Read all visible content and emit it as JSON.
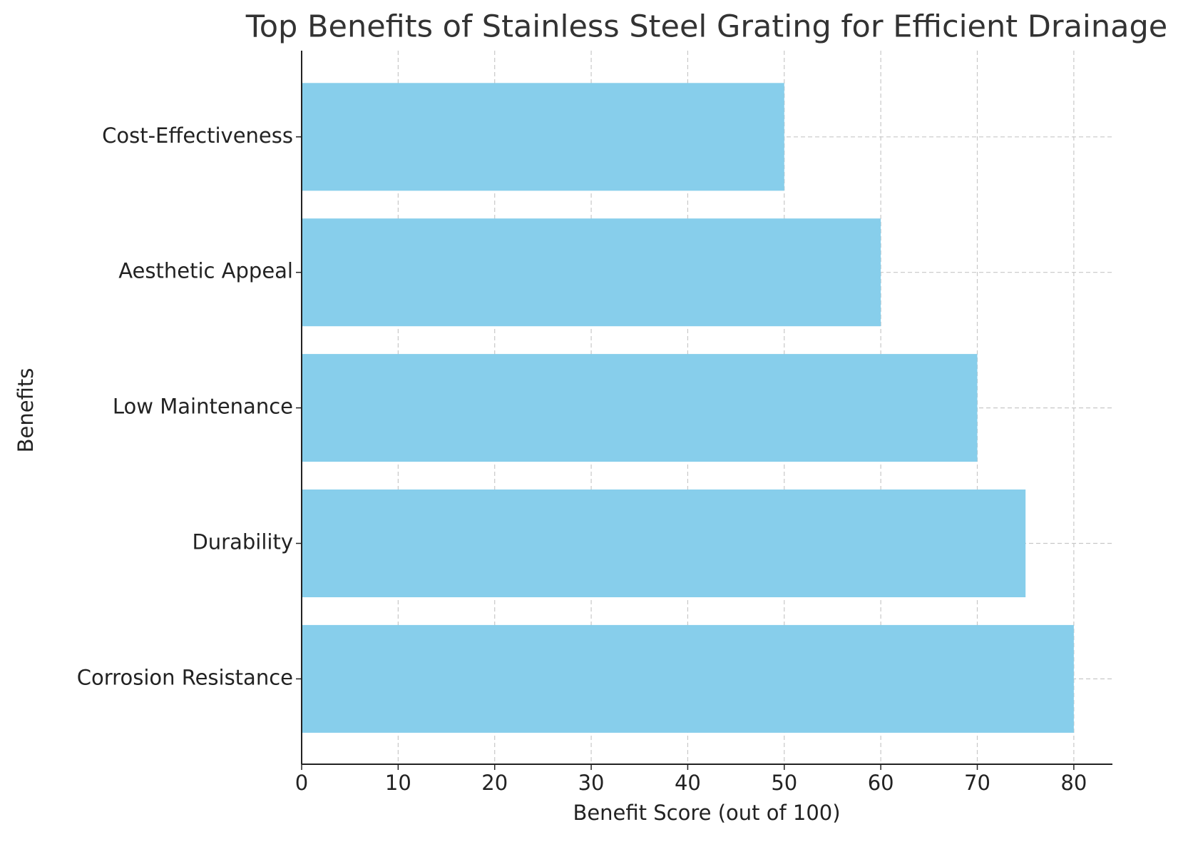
{
  "chart_data": {
    "type": "barh",
    "title": "Top Benefits of Stainless Steel Grating for Efficient Drainage",
    "x_label": "Benefit Score (out of 100)",
    "y_label": "Benefits",
    "categories": [
      "Corrosion Resistance",
      "Durability",
      "Low Maintenance",
      "Aesthetic Appeal",
      "Cost-Effectiveness"
    ],
    "values": [
      80,
      75,
      70,
      60,
      50
    ],
    "color": "#87ceeb",
    "xlim": [
      0,
      84
    ],
    "xticks": [
      0,
      10,
      20,
      30,
      40,
      50,
      60,
      70,
      80
    ],
    "grid": true
  }
}
